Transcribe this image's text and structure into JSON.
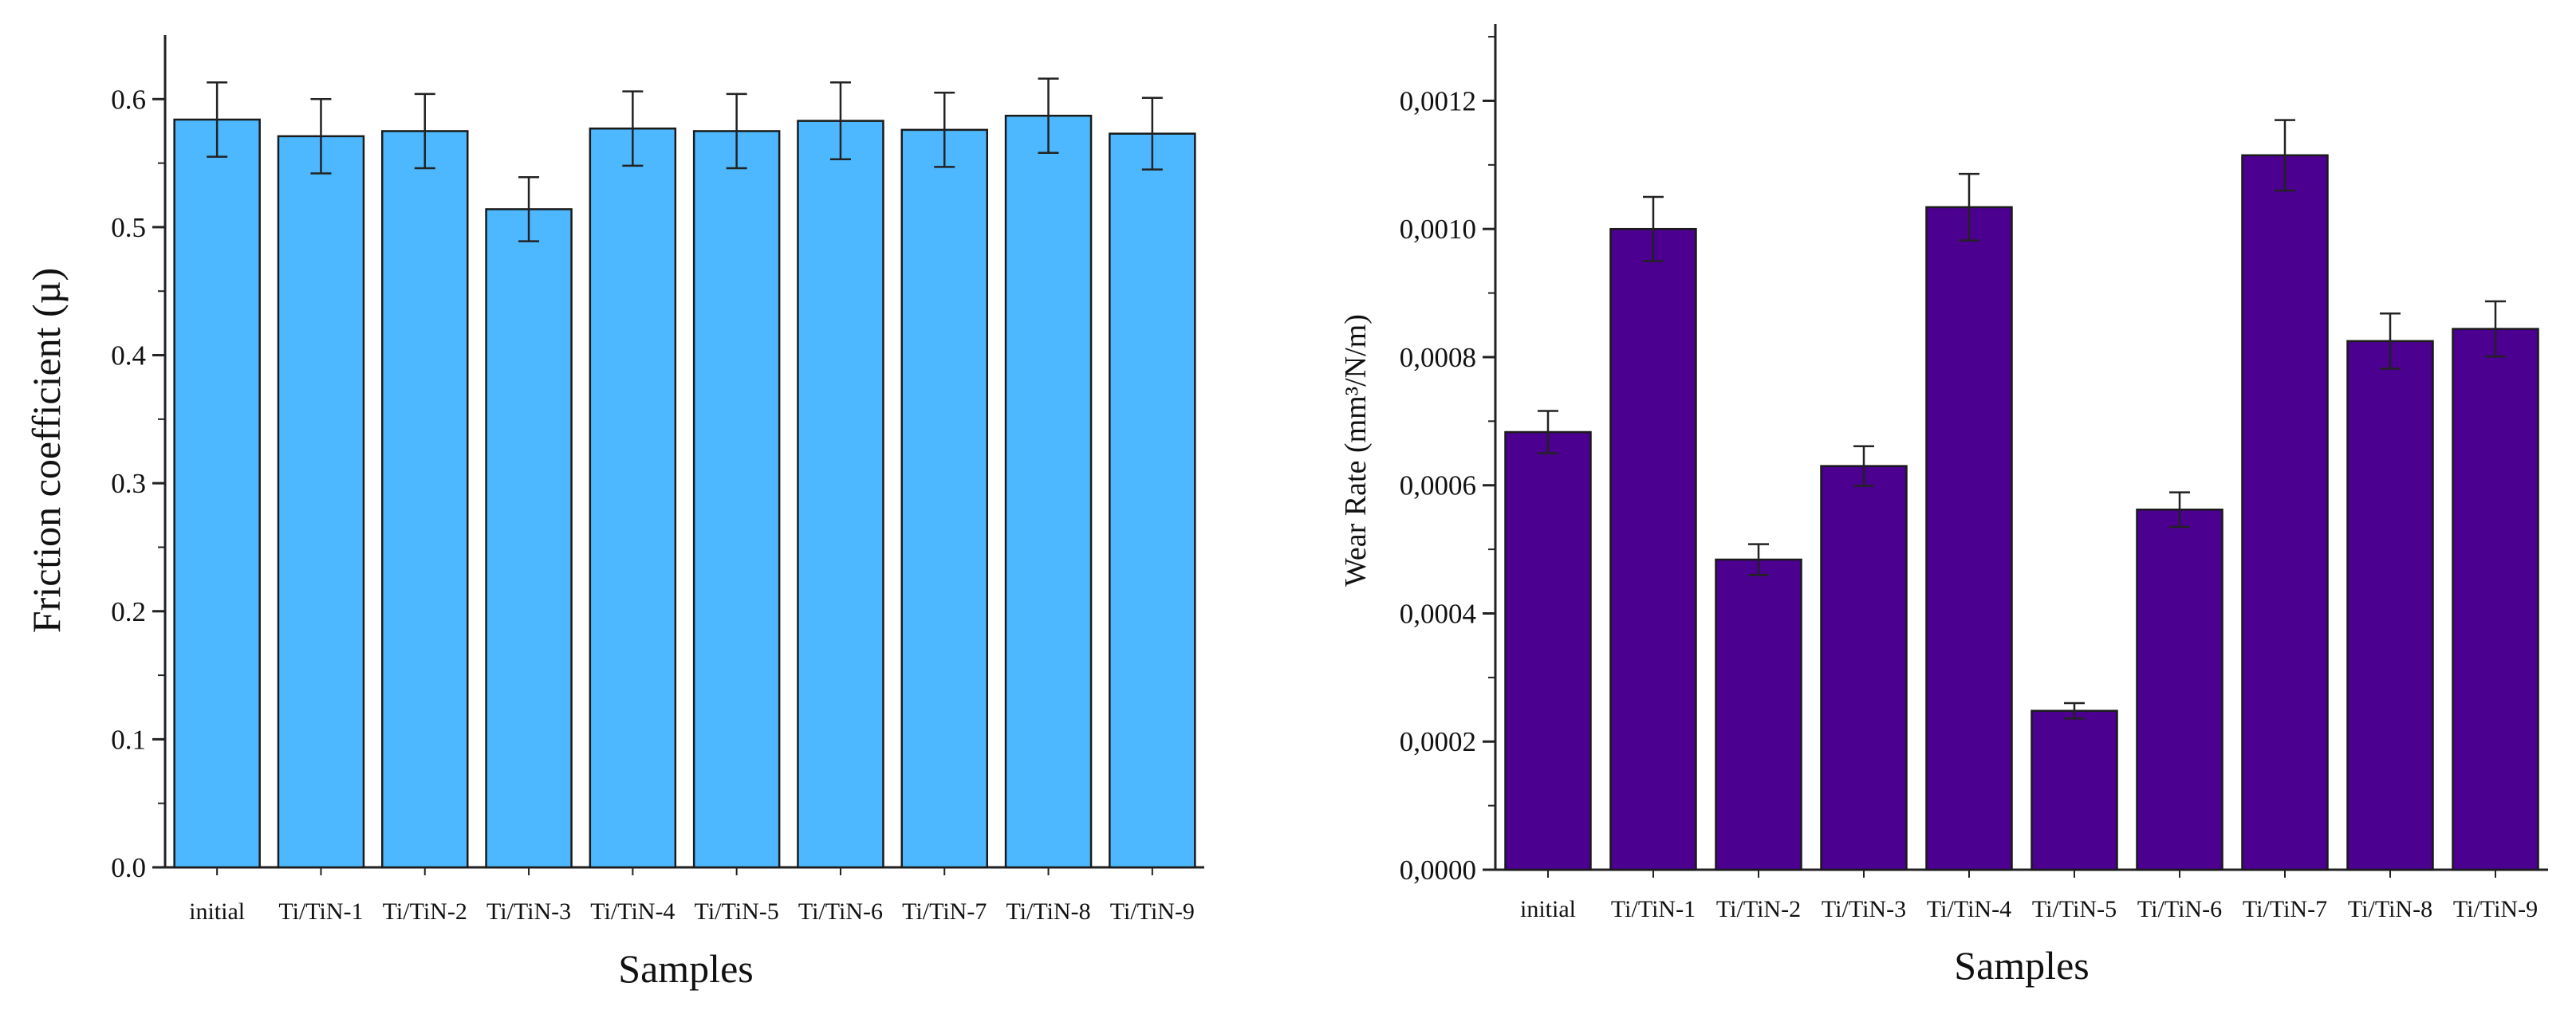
{
  "chart_data": [
    {
      "type": "bar",
      "title": "",
      "xlabel": "Samples",
      "ylabel": "Friction coefficient (µ)",
      "categories": [
        "initial",
        "Ti/TiN-1",
        "Ti/TiN-2",
        "Ti/TiN-3",
        "Ti/TiN-4",
        "Ti/TiN-5",
        "Ti/TiN-6",
        "Ti/TiN-7",
        "Ti/TiN-8",
        "Ti/TiN-9"
      ],
      "values": [
        0.584,
        0.571,
        0.575,
        0.514,
        0.577,
        0.575,
        0.583,
        0.576,
        0.587,
        0.573
      ],
      "errors": [
        0.029,
        0.029,
        0.029,
        0.025,
        0.029,
        0.029,
        0.03,
        0.029,
        0.029,
        0.028
      ],
      "ylim": [
        0,
        0.65
      ],
      "yticks": [
        "0.0",
        "0.1",
        "0.2",
        "0.3",
        "0.4",
        "0.5",
        "0.6"
      ],
      "bar_color": "#4db8ff",
      "grid": false
    },
    {
      "type": "bar",
      "title": "",
      "xlabel": "Samples",
      "ylabel": "Wear Rate (mm³/N/m)",
      "categories": [
        "initial",
        "Ti/TiN-1",
        "Ti/TiN-2",
        "Ti/TiN-3",
        "Ti/TiN-4",
        "Ti/TiN-5",
        "Ti/TiN-6",
        "Ti/TiN-7",
        "Ti/TiN-8",
        "Ti/TiN-9"
      ],
      "values": [
        0.000683,
        0.001,
        0.000484,
        0.00063,
        0.001034,
        0.000248,
        0.000562,
        0.001115,
        0.000825,
        0.000844
      ],
      "errors": [
        3.3e-05,
        5e-05,
        2.4e-05,
        3.1e-05,
        5.2e-05,
        1.2e-05,
        2.7e-05,
        5.5e-05,
        4.3e-05,
        4.3e-05
      ],
      "ylim": [
        0,
        0.00132
      ],
      "yticks": [
        "0,0000",
        "0,0002",
        "0,0004",
        "0,0006",
        "0,0008",
        "0,0010",
        "0,0012"
      ],
      "bar_color": "#4b0090",
      "grid": false
    }
  ]
}
